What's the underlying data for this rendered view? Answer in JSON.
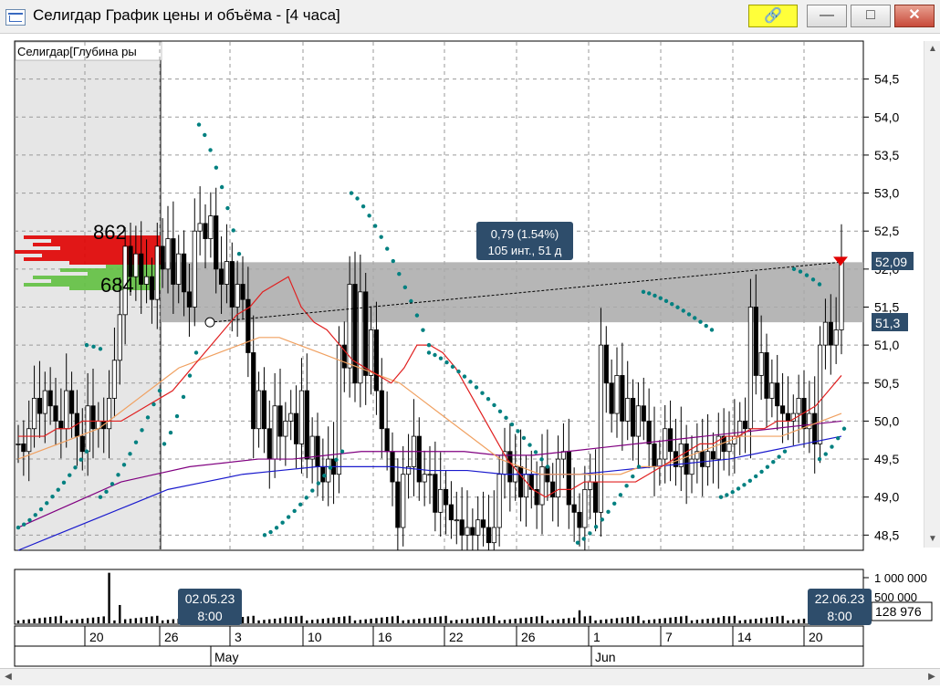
{
  "window": {
    "title": "Селигдар График цены и объёма - [4 часа]",
    "buttons": {
      "minimize": "—",
      "maximize": "□",
      "close": "✕"
    },
    "link_icon": "link-icon"
  },
  "colors": {
    "background": "#ffffff",
    "up_candle": "#ffffff",
    "down_candle": "#000000",
    "ema_short": "#e02020",
    "ema_mid": "#f0a060",
    "ma_purple": "#800080",
    "ma_blue": "#1a1acd",
    "sar": "#008080",
    "selection": "#a9a9a9",
    "profile_red": "#e00000",
    "profile_green": "#60c040"
  },
  "depth_panel": {
    "label": "Селигдар[Глубина ры",
    "ask_volume": "862",
    "bid_volume": "684"
  },
  "measure_tooltip": {
    "line1": "0,79 (1.54%)",
    "line2": "105 инт., 51 д"
  },
  "price_tags": {
    "current": "52,09",
    "selection_low": "51,3"
  },
  "volume_panel": {
    "current": "128 976",
    "tick1": "1 000 000",
    "tick2": "500 000"
  },
  "crosshair_dates": {
    "start": [
      "02.05.23",
      "8:00"
    ],
    "end": [
      "22.06.23",
      "8:00"
    ]
  },
  "chart_data": {
    "type": "candlestick",
    "title": "Селигдар График цены и объёма - [4 часа]",
    "ylim": [
      48.3,
      55.0
    ],
    "y_ticks": [
      "48,5",
      "49,0",
      "49,5",
      "50,0",
      "50,5",
      "51,0",
      "51,5",
      "52,0",
      "52,5",
      "53,0",
      "53,5",
      "54,0",
      "54,5"
    ],
    "y_tick_values": [
      48.5,
      49.0,
      49.5,
      50.0,
      50.5,
      51.0,
      51.5,
      52.0,
      52.5,
      53.0,
      53.5,
      54.0,
      54.5
    ],
    "x_day_labels": [
      "20",
      "26",
      "3",
      "10",
      "16",
      "22",
      "26",
      "1",
      "7",
      "14",
      "20"
    ],
    "x_month_labels": [
      "May",
      "Jun"
    ],
    "closes": [
      49.7,
      49.6,
      49.9,
      50.3,
      50.1,
      50.4,
      50.2,
      50.0,
      49.9,
      50.4,
      50.1,
      49.8,
      49.6,
      50.2,
      49.9,
      50.0,
      49.9,
      50.3,
      50.8,
      51.4,
      52.3,
      51.9,
      52.2,
      51.8,
      51.9,
      51.6,
      52.3,
      52.0,
      52.4,
      51.8,
      52.2,
      51.7,
      51.5,
      52.5,
      52.6,
      52.4,
      52.7,
      52.0,
      51.8,
      52.1,
      51.5,
      51.8,
      51.6,
      50.9,
      49.9,
      50.4,
      49.9,
      49.5,
      50.2,
      49.8,
      50.0,
      50.1,
      49.7,
      50.4,
      49.5,
      49.8,
      49.4,
      49.2,
      49.5,
      49.3,
      51.0,
      50.7,
      51.8,
      50.5,
      51.7,
      50.6,
      51.2,
      50.4,
      49.9,
      49.6,
      49.2,
      48.6,
      49.3,
      49.4,
      49.8,
      49.2,
      49.3,
      49.3,
      48.8,
      49.1,
      48.9,
      48.7,
      48.7,
      48.5,
      48.6,
      48.5,
      48.7,
      48.6,
      48.4,
      48.6,
      49.3,
      49.6,
      49.2,
      49.4,
      49.0,
      49.3,
      49.1,
      48.9,
      49.4,
      49.2,
      49.0,
      49.5,
      49.6,
      48.9,
      48.8,
      48.6,
      49.1,
      49.2,
      48.8,
      51.0,
      50.5,
      50.1,
      50.6,
      50.0,
      50.3,
      49.8,
      50.2,
      50.0,
      49.7,
      49.4,
      49.5,
      49.9,
      49.6,
      49.4,
      49.7,
      49.3,
      49.5,
      49.6,
      49.4,
      49.6,
      49.5,
      49.8,
      49.6,
      49.7,
      49.8,
      50.0,
      49.9,
      51.5,
      50.6,
      50.9,
      50.3,
      50.5,
      50.2,
      50.1,
      50.0,
      50.1,
      50.3,
      49.9,
      50.1,
      49.7,
      51.0,
      51.3,
      51.0,
      51.2,
      52.1
    ],
    "ema_short": [
      49.8,
      49.8,
      49.8,
      49.9,
      49.9,
      50.0,
      50.0,
      50.0,
      50.0,
      50.1,
      50.2,
      50.3,
      50.4,
      50.6,
      50.8,
      51.0,
      51.2,
      51.4,
      51.5,
      51.7,
      51.8,
      51.9,
      51.5,
      51.3,
      51.2,
      51.0,
      50.8,
      50.7,
      50.6,
      50.5,
      50.7,
      51.0,
      51.0,
      50.9,
      50.7,
      50.4,
      50.1,
      49.8,
      49.5,
      49.3,
      49.1,
      49.0,
      49.1,
      49.1,
      49.2,
      49.2,
      49.2,
      49.2,
      49.2,
      49.3,
      49.4,
      49.5,
      49.6,
      49.7,
      49.7,
      49.8,
      49.8,
      49.9,
      49.9,
      50.0,
      50.0,
      50.1,
      50.2,
      50.4,
      50.6
    ],
    "ema_mid": [
      49.5,
      49.6,
      49.7,
      49.8,
      49.9,
      50.1,
      50.3,
      50.5,
      50.7,
      50.8,
      50.9,
      51.0,
      51.1,
      51.1,
      51.0,
      50.9,
      50.8,
      50.7,
      50.6,
      50.5,
      50.3,
      50.1,
      49.9,
      49.7,
      49.5,
      49.4,
      49.3,
      49.3,
      49.3,
      49.3,
      49.3,
      49.4,
      49.4,
      49.5,
      49.6,
      49.7,
      49.8,
      49.8,
      49.8,
      49.9,
      50.0,
      50.1
    ],
    "ma_purple": [
      48.6,
      48.8,
      49.0,
      49.2,
      49.3,
      49.4,
      49.45,
      49.5,
      49.5,
      49.55,
      49.6,
      49.6,
      49.6,
      49.6,
      49.55,
      49.55,
      49.6,
      49.65,
      49.7,
      49.75,
      49.8,
      49.85,
      49.9,
      49.95,
      50.0
    ],
    "ma_blue": [
      48.3,
      48.5,
      48.7,
      48.9,
      49.1,
      49.2,
      49.3,
      49.35,
      49.4,
      49.4,
      49.4,
      49.35,
      49.35,
      49.3,
      49.3,
      49.3,
      49.35,
      49.4,
      49.45,
      49.5,
      49.6,
      49.7,
      49.8
    ],
    "selection_range": [
      51.3,
      52.09
    ],
    "measure_line": [
      51.3,
      52.09
    ],
    "volume_ylim": [
      0,
      1100000
    ],
    "volume_ticks": [
      "1 000 000",
      "500 000"
    ]
  }
}
